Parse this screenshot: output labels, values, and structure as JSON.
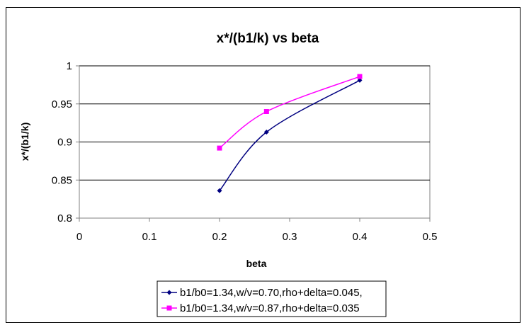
{
  "chart_data": {
    "type": "line",
    "title": "x*/(b1/k) vs beta",
    "xlabel": "beta",
    "ylabel": "x*/(b1/k)",
    "xlim": [
      0,
      0.5
    ],
    "ylim": [
      0.8,
      1
    ],
    "x_ticks": [
      "0",
      "0.1",
      "0.2",
      "0.3",
      "0.4",
      "0.5"
    ],
    "y_ticks": [
      "0.8",
      "0.85",
      "0.9",
      "0.95",
      "1"
    ],
    "grid": "horizontal major gridlines",
    "legend_position": "bottom",
    "series": [
      {
        "name": "b1/b0=1.34,w/v=0.70,rho+delta=0.045,",
        "color": "#000080",
        "marker": "diamond",
        "x": [
          0.2,
          0.267,
          0.4
        ],
        "y": [
          0.836,
          0.913,
          0.981
        ]
      },
      {
        "name": "b1/b0=1.34,w/v=0.87,rho+delta=0.035",
        "color": "#FF00FF",
        "marker": "square",
        "x": [
          0.2,
          0.267,
          0.4
        ],
        "y": [
          0.892,
          0.94,
          0.986
        ]
      }
    ]
  },
  "colors": {
    "plot_background": "#FFFFFF",
    "gridline": "#000000",
    "axis": "#808080"
  }
}
